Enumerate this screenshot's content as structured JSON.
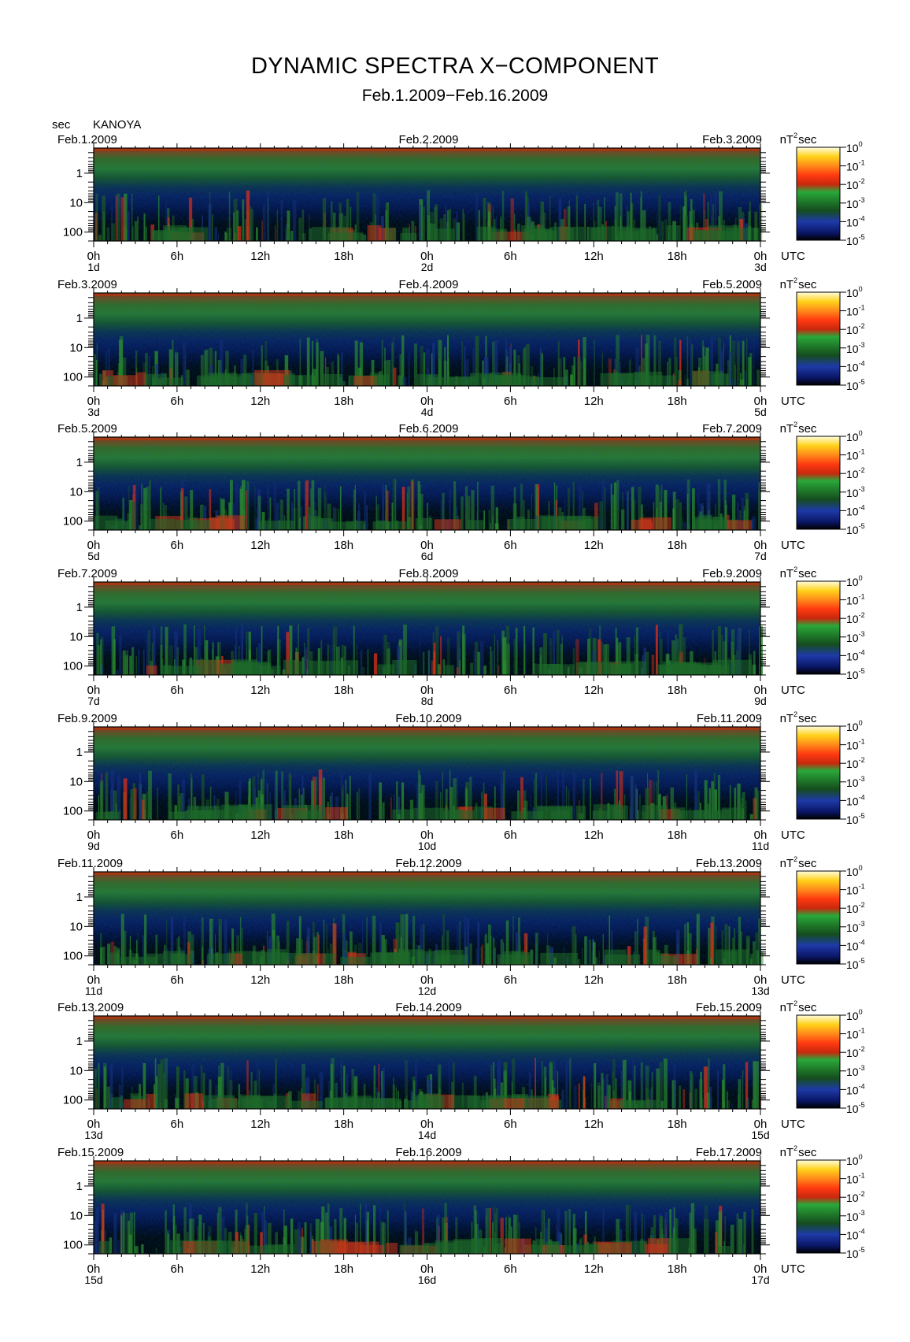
{
  "header": {
    "title": "DYNAMIC SPECTRA X−COMPONENT",
    "subtitle": "Feb.1.2009−Feb.16.2009",
    "y_unit": "sec",
    "station": "KANOYA"
  },
  "colorbar": {
    "unit_base": "nT",
    "unit_exp": "2",
    "unit_tail": "sec",
    "levels": [
      {
        "base": "10",
        "exp": "0"
      },
      {
        "base": "10",
        "exp": "-1"
      },
      {
        "base": "10",
        "exp": "-2"
      },
      {
        "base": "10",
        "exp": "-3"
      },
      {
        "base": "10",
        "exp": "-4"
      },
      {
        "base": "10",
        "exp": "-5"
      }
    ],
    "colors": [
      "#000000",
      "#0b1a6b",
      "#1f3fb0",
      "#1c6b2a",
      "#2aa83a",
      "#e02a10",
      "#ff7a1a",
      "#ffd21a",
      "#fffbd0"
    ]
  },
  "chart_data": {
    "type": "heatmap",
    "title": "DYNAMIC SPECTRA X−COMPONENT",
    "ylabel": "sec",
    "y_scale": "log",
    "y_ticks": [
      "1",
      "10",
      "100"
    ],
    "x_ticks": [
      "0h",
      "6h",
      "12h",
      "18h",
      "0h",
      "6h",
      "12h",
      "18h",
      "0h"
    ],
    "x_unit": "UTC",
    "panels": [
      {
        "date_left": "Feb.1.2009",
        "date_mid": "Feb.2.2009",
        "date_right": "Feb.3.2009",
        "day_left": "1d",
        "day_mid": "2d",
        "day_right": "3d"
      },
      {
        "date_left": "Feb.3.2009",
        "date_mid": "Feb.4.2009",
        "date_right": "Feb.5.2009",
        "day_left": "3d",
        "day_mid": "4d",
        "day_right": "5d"
      },
      {
        "date_left": "Feb.5.2009",
        "date_mid": "Feb.6.2009",
        "date_right": "Feb.7.2009",
        "day_left": "5d",
        "day_mid": "6d",
        "day_right": "7d"
      },
      {
        "date_left": "Feb.7.2009",
        "date_mid": "Feb.8.2009",
        "date_right": "Feb.9.2009",
        "day_left": "7d",
        "day_mid": "8d",
        "day_right": "9d"
      },
      {
        "date_left": "Feb.9.2009",
        "date_mid": "Feb.10.2009",
        "date_right": "Feb.11.2009",
        "day_left": "9d",
        "day_mid": "10d",
        "day_right": "11d"
      },
      {
        "date_left": "Feb.11.2009",
        "date_mid": "Feb.12.2009",
        "date_right": "Feb.13.2009",
        "day_left": "11d",
        "day_mid": "12d",
        "day_right": "13d"
      },
      {
        "date_left": "Feb.13.2009",
        "date_mid": "Feb.14.2009",
        "date_right": "Feb.15.2009",
        "day_left": "13d",
        "day_mid": "14d",
        "day_right": "15d"
      },
      {
        "date_left": "Feb.15.2009",
        "date_mid": "Feb.16.2009",
        "date_right": "Feb.17.2009",
        "day_left": "15d",
        "day_mid": "16d",
        "day_right": "17d"
      }
    ]
  }
}
